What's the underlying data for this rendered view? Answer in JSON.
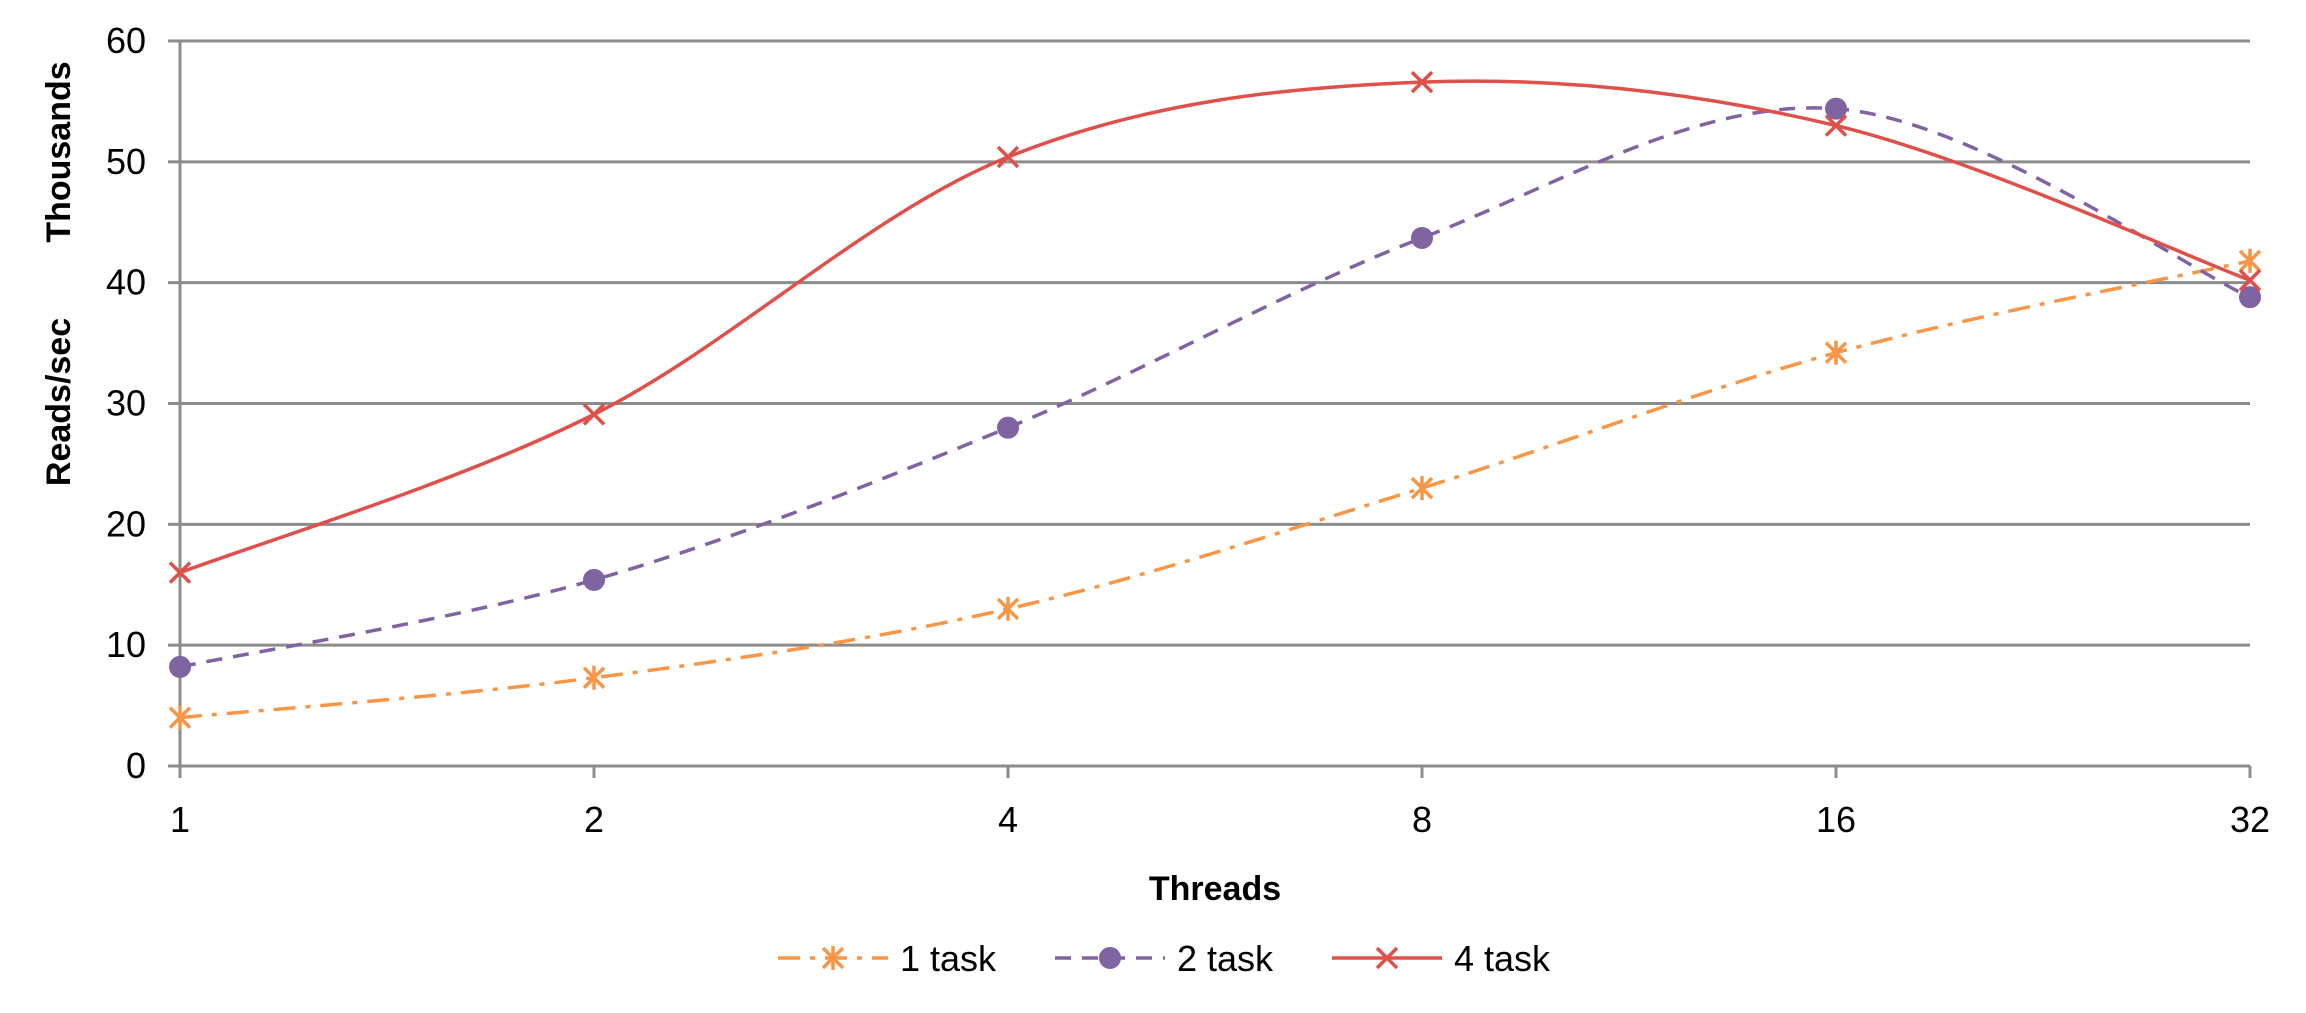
{
  "chart_data": {
    "type": "line",
    "x_scale": "log2",
    "categories": [
      "1",
      "2",
      "4",
      "8",
      "16",
      "32"
    ],
    "x": [
      1,
      2,
      4,
      8,
      16,
      32
    ],
    "xlabel": "Threads",
    "ylabel": "Reads/sec",
    "y_units_label": "Thousands",
    "ylim": [
      0,
      60
    ],
    "yticks": [
      0,
      10,
      20,
      30,
      40,
      50,
      60
    ],
    "grid": true,
    "smooth": true,
    "legend_position": "bottom",
    "series": [
      {
        "name": "1 task",
        "color": "#f79646",
        "dash": "dashdot",
        "marker": "asterisk",
        "values": [
          4.0,
          7.3,
          13.0,
          23.0,
          34.2,
          41.8
        ]
      },
      {
        "name": "2 task",
        "color": "#8064a2",
        "dash": "dashed",
        "marker": "circle",
        "values": [
          8.2,
          15.4,
          28.0,
          43.7,
          54.4,
          38.8
        ]
      },
      {
        "name": "4 task",
        "color": "#e0504a",
        "dash": "solid",
        "marker": "x",
        "values": [
          16.0,
          29.1,
          50.4,
          56.6,
          53.0,
          40.2
        ]
      }
    ]
  }
}
